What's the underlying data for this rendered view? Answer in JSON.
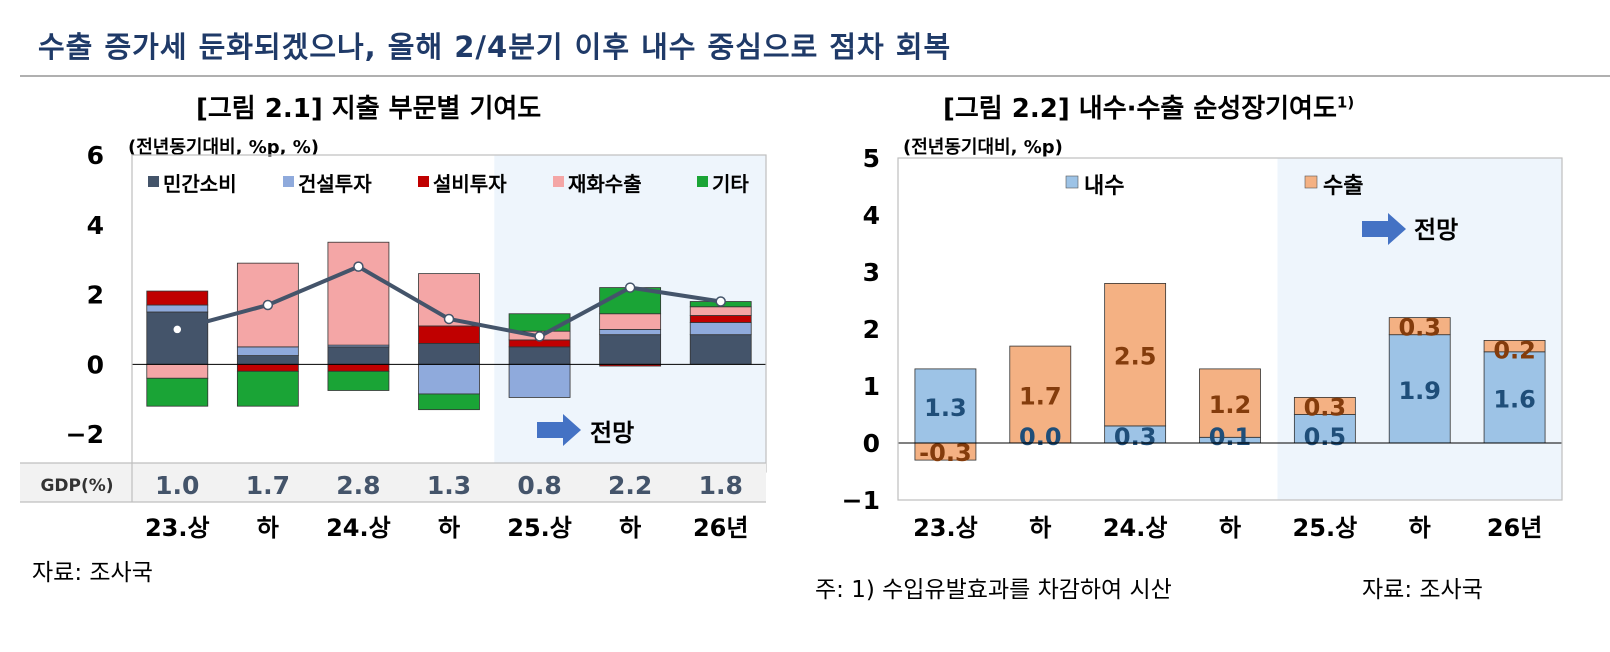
{
  "headline": "수출 증가세 둔화되겠으나, 올해 2/4분기 이후 내수 중심으로 점차 회복",
  "figure1": {
    "title": "[그림 2.1] 지출 부문별 기여도",
    "unit": "(전년동기대비, %p, %)",
    "source": "자료: 조사국"
  },
  "figure2": {
    "title": "[그림 2.2] 내수·수출 순성장기여도",
    "title_sup": "1)",
    "unit": "(전년동기대비, %p)",
    "note": "주: 1) 수입유발효과를 차감하여 시산",
    "source": "자료: 조사국"
  },
  "chart_data": [
    {
      "type": "bar",
      "stacked": true,
      "categories": [
        "23.상",
        "하",
        "24.상",
        "하",
        "25.상",
        "하",
        "26년"
      ],
      "ylim": [
        -2.8,
        6
      ],
      "yticks": [
        6,
        4,
        2,
        0,
        -2
      ],
      "ytick_labels": [
        "6",
        "4",
        "2",
        "0",
        "−2"
      ],
      "forecast_start_index": 4,
      "forecast_label": "전망",
      "legend": {
        "placement": "top",
        "order": [
          "민간소비",
          "건설투자",
          "설비투자",
          "재화수출",
          "기타"
        ]
      },
      "series": [
        {
          "name": "민간소비",
          "color": "#44546a",
          "values": [
            1.5,
            0.25,
            0.5,
            0.6,
            0.5,
            0.85,
            0.85
          ]
        },
        {
          "name": "건설투자",
          "color": "#8faadc",
          "values": [
            0.2,
            0.25,
            0.05,
            -0.85,
            -0.95,
            0.15,
            0.35
          ]
        },
        {
          "name": "설비투자",
          "color": "#c00000",
          "values": [
            0.4,
            -0.2,
            -0.2,
            0.5,
            0.2,
            -0.05,
            0.2
          ]
        },
        {
          "name": "재화수출",
          "color": "#f4a6a6",
          "values": [
            -0.4,
            2.4,
            2.95,
            1.5,
            0.25,
            0.45,
            0.25
          ]
        },
        {
          "name": "기타",
          "color": "#1aa436",
          "values": [
            -0.8,
            -1.0,
            -0.55,
            -0.45,
            0.5,
            0.75,
            0.15
          ]
        }
      ],
      "line": {
        "name": "GDP(%)",
        "color": "#44546a",
        "values": [
          1.0,
          1.7,
          2.8,
          1.3,
          0.8,
          2.2,
          1.8
        ]
      },
      "table": {
        "label": "GDP(%)",
        "values": [
          "1.0",
          "1.7",
          "2.8",
          "1.3",
          "0.8",
          "2.2",
          "1.8"
        ]
      }
    },
    {
      "type": "bar",
      "stacked": true,
      "categories": [
        "23.상",
        "하",
        "24.상",
        "하",
        "25.상",
        "하",
        "26년"
      ],
      "ylim": [
        -1,
        5
      ],
      "yticks": [
        5,
        4,
        3,
        2,
        1,
        0,
        -1
      ],
      "ytick_labels": [
        "5",
        "4",
        "3",
        "2",
        "1",
        "0",
        "−1"
      ],
      "forecast_start_index": 4,
      "forecast_label": "전망",
      "legend": {
        "placement": "top",
        "order": [
          "내수",
          "수출"
        ]
      },
      "series": [
        {
          "name": "내수",
          "color": "#9dc3e6",
          "label_color": "#1f4e79",
          "values": [
            1.3,
            0.0,
            0.3,
            0.1,
            0.5,
            1.9,
            1.6
          ],
          "labels": [
            "1.3",
            "0.0",
            "0.3",
            "0.1",
            "0.5",
            "1.9",
            "1.6"
          ]
        },
        {
          "name": "수출",
          "color": "#f4b183",
          "label_color": "#843c0c",
          "values": [
            -0.3,
            1.7,
            2.5,
            1.2,
            0.3,
            0.3,
            0.2
          ],
          "labels": [
            "-0.3",
            "1.7",
            "2.5",
            "1.2",
            "0.3",
            "0.3",
            "0.2"
          ]
        }
      ]
    }
  ]
}
